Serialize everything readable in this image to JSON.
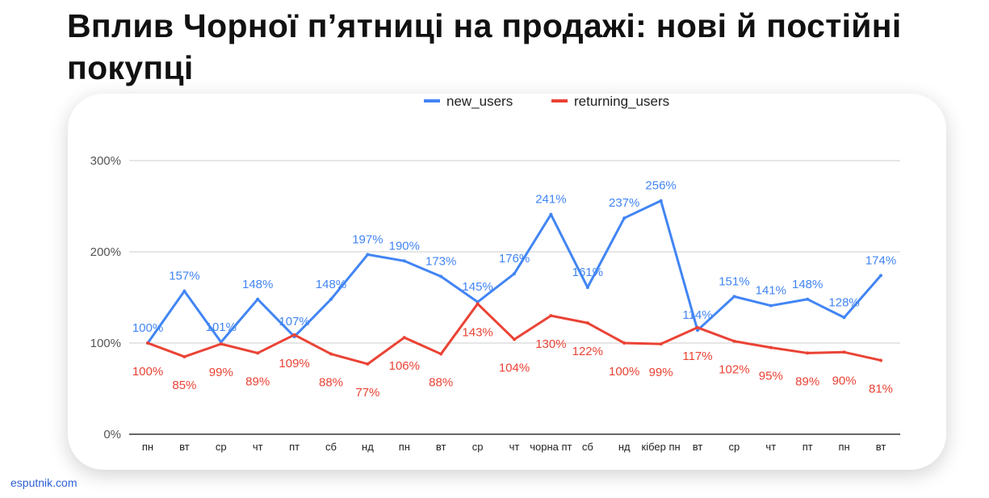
{
  "footer": "esputnik.com",
  "chart_data": {
    "type": "line",
    "title": "Вплив Чорної п’ятниці на продажі: нові й постійні покупці",
    "xlabel": "",
    "ylabel": "",
    "ylim": [
      0,
      300
    ],
    "yticks": [
      0,
      100,
      200,
      300
    ],
    "ytick_labels": [
      "0%",
      "100%",
      "200%",
      "300%"
    ],
    "grid": true,
    "legend_position": "top-center",
    "categories": [
      "пн",
      "вт",
      "ср",
      "чт",
      "пт",
      "сб",
      "нд",
      "пн",
      "вт",
      "ср",
      "чт",
      "чорна пт",
      "сб",
      "нд",
      "кібер пн",
      "вт",
      "ср",
      "чт",
      "пт",
      "пн",
      "вт"
    ],
    "series": [
      {
        "name": "new_users",
        "color": "#4285f4",
        "values": [
          100,
          157,
          101,
          148,
          107,
          148,
          197,
          190,
          173,
          145,
          176,
          241,
          161,
          237,
          256,
          114,
          151,
          141,
          148,
          128,
          174
        ]
      },
      {
        "name": "returning_users",
        "color": "#ea4335",
        "values": [
          100,
          85,
          99,
          89,
          109,
          88,
          77,
          106,
          88,
          143,
          104,
          130,
          122,
          100,
          99,
          117,
          102,
          95,
          89,
          90,
          81
        ]
      }
    ]
  }
}
